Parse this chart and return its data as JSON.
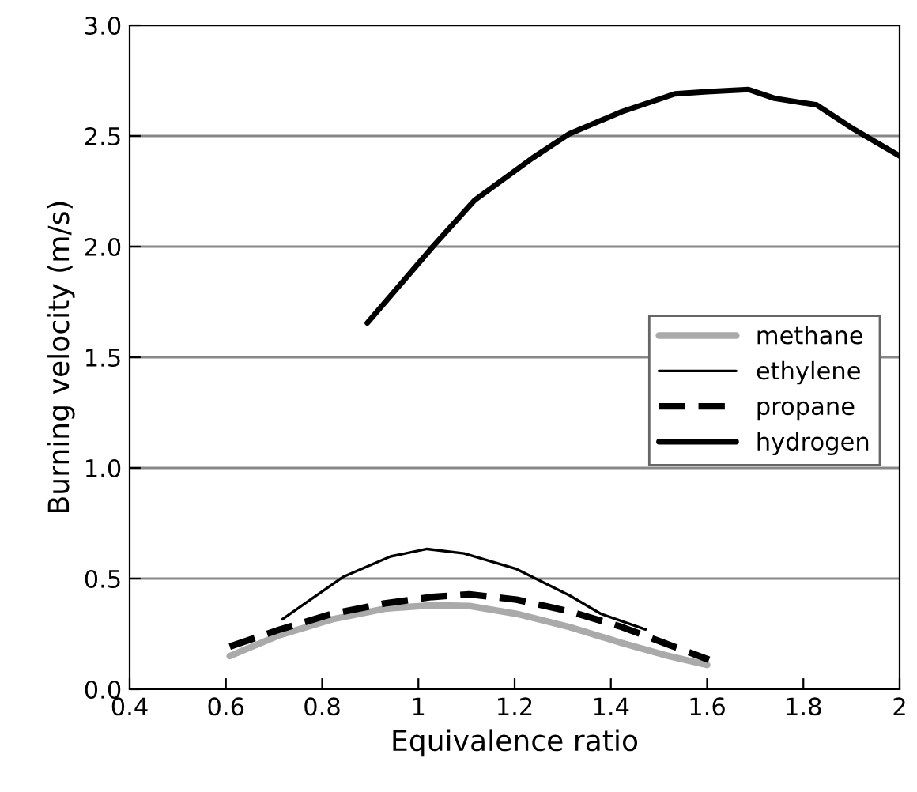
{
  "chart_data": {
    "type": "line",
    "xlabel": "Equivalence ratio",
    "ylabel": "Burning velocity (m/s)",
    "xlim": [
      0.4,
      2
    ],
    "xticks": [
      0.4,
      0.6,
      0.8,
      {
        "value": 1,
        "label": "1"
      },
      1.2,
      1.4,
      1.6,
      1.8,
      {
        "value": 2,
        "label": "2"
      }
    ],
    "ylim": [
      0,
      3
    ],
    "yticks": [
      {
        "value": 0,
        "label": "0.0"
      },
      0.5,
      {
        "value": 1,
        "label": "1.0"
      },
      1.5,
      {
        "value": 2,
        "label": "2.0"
      },
      2.5,
      {
        "value": 3,
        "label": "3.0"
      }
    ],
    "grid": "y",
    "legend": "right",
    "marker": "none",
    "series": [
      {
        "name": "methane",
        "color": "#aaaaaa",
        "line_style": "solid",
        "x": [
          0.608,
          0.712,
          0.821,
          0.93,
          1.029,
          1.106,
          1.204,
          1.314,
          1.423,
          1.511,
          1.6
        ],
        "values": [
          0.15,
          0.245,
          0.316,
          0.364,
          0.38,
          0.376,
          0.341,
          0.281,
          0.209,
          0.155,
          0.11
        ]
      },
      {
        "name": "ethylene",
        "color": "#000000",
        "line_style": "solid",
        "x": [
          0.717,
          0.843,
          0.942,
          1.018,
          1.095,
          1.204,
          1.314,
          1.379,
          1.472
        ],
        "values": [
          0.316,
          0.507,
          0.6,
          0.634,
          0.614,
          0.543,
          0.424,
          0.341,
          0.27
        ]
      },
      {
        "name": "propane",
        "color": "#000000",
        "line_style": "dashed",
        "x": [
          0.608,
          0.712,
          0.821,
          0.93,
          1.029,
          1.106,
          1.204,
          1.314,
          1.423,
          1.511,
          1.604
        ],
        "values": [
          0.193,
          0.27,
          0.341,
          0.388,
          0.417,
          0.429,
          0.405,
          0.352,
          0.281,
          0.209,
          0.133
        ]
      },
      {
        "name": "hydrogen",
        "color": "#000000",
        "line_style": "solid",
        "x": [
          0.894,
          1.03,
          1.117,
          1.237,
          1.314,
          1.423,
          1.533,
          1.6,
          1.686,
          1.74,
          1.828,
          1.905,
          2.0
        ],
        "values": [
          1.655,
          2.0,
          2.21,
          2.4,
          2.51,
          2.61,
          2.69,
          2.7,
          2.71,
          2.67,
          2.64,
          2.53,
          2.41
        ]
      }
    ]
  }
}
